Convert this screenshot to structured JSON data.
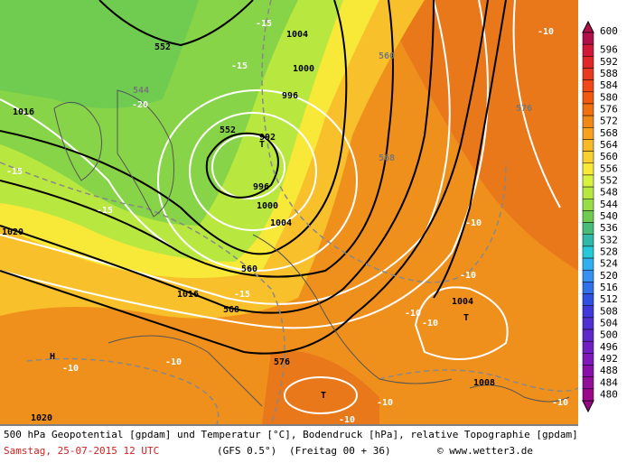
{
  "footer": {
    "line1": "500 hPa Geopotential [gpdam] und Temperatur [°C], Bodendruck [hPa], relative Topographie [gpdam]",
    "date": "Samstag, 25-07-2015  12 UTC",
    "model": "(GFS 0.5°)",
    "run": "(Freitag 00 + 36)",
    "credit": "© www.wetter3.de"
  },
  "legend": {
    "labels": [
      "600",
      "596",
      "592",
      "588",
      "584",
      "580",
      "576",
      "572",
      "568",
      "564",
      "560",
      "556",
      "552",
      "548",
      "544",
      "540",
      "536",
      "532",
      "528",
      "524",
      "520",
      "516",
      "512",
      "508",
      "504",
      "500",
      "496",
      "492",
      "488",
      "484",
      "480"
    ],
    "colors": [
      "#b0104a",
      "#d01838",
      "#e02828",
      "#e83a20",
      "#f04818",
      "#f05a10",
      "#f07010",
      "#f08818",
      "#f8a020",
      "#f8b828",
      "#f8d030",
      "#f8e838",
      "#d8f040",
      "#b8e840",
      "#98dc48",
      "#70cc50",
      "#48bc78",
      "#30b8a8",
      "#28c8d8",
      "#30b0f0",
      "#3890f0",
      "#3070e8",
      "#3050e0",
      "#4038d8",
      "#5030d0",
      "#6028c8",
      "#7020c0",
      "#8018b8",
      "#8810a8",
      "#901098",
      "#980888"
    ]
  },
  "map_labels": [
    "552",
    "552",
    "560",
    "568",
    "576",
    "1016",
    "1016",
    "1020",
    "1020",
    "1004",
    "1000",
    "996",
    "992",
    "996",
    "1000",
    "1004",
    "1004",
    "1008",
    "-15",
    "-15",
    "-20",
    "-15",
    "-15",
    "-15",
    "-10",
    "-10",
    "-10",
    "-10",
    "-10",
    "-10",
    "-10",
    "-10",
    "-10",
    "-10",
    "H",
    "T",
    "T",
    "T",
    "544",
    "560",
    "568",
    "576"
  ]
}
